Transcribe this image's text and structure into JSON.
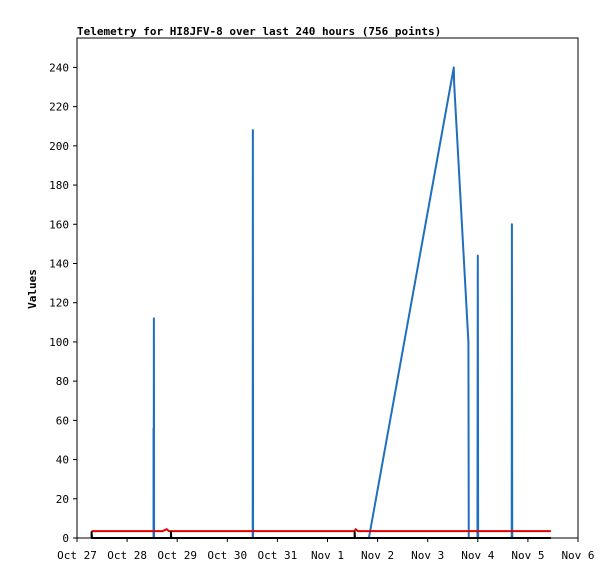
{
  "chart_data": {
    "type": "line",
    "title": "Telemetry for HI8JFV-8 over last 240 hours (756 points)",
    "xlabel": "",
    "ylabel": "Values",
    "x_tick_labels": [
      "Oct 27",
      "Oct 28",
      "Oct 29",
      "Oct 30",
      "Oct 31",
      "Nov 1",
      "Nov 2",
      "Nov 3",
      "Nov 4",
      "Nov 5",
      "Nov 6"
    ],
    "xlim": [
      "2024-10-27",
      "2024-11-06"
    ],
    "y_ticks": [
      0,
      20,
      40,
      60,
      80,
      100,
      120,
      140,
      160,
      180,
      200,
      220,
      240
    ],
    "ylim": [
      0,
      255
    ],
    "grid": false,
    "legend": "none",
    "series": [
      {
        "color": "#1f6fbf",
        "points": [
          [
            "2024-10-28T12:40",
            0
          ],
          [
            "2024-10-28T12:40",
            56
          ],
          [
            "2024-10-28T12:45",
            0
          ],
          [
            "2024-10-28T12:50",
            112
          ],
          [
            "2024-10-28T12:55",
            0
          ],
          [
            "2024-10-30T12:10",
            0
          ],
          [
            "2024-10-30T12:15",
            208
          ],
          [
            "2024-10-30T12:20",
            0
          ],
          [
            "2024-11-01T19:50",
            0
          ],
          [
            "2024-11-03T12:30",
            240
          ],
          [
            "2024-11-03T12:40",
            232
          ],
          [
            "2024-11-03T19:30",
            100
          ],
          [
            "2024-11-03T19:40",
            0
          ],
          [
            "2024-11-03T19:50",
            0
          ],
          [
            "2024-11-03T23:50",
            0
          ],
          [
            "2024-11-04T00:00",
            144
          ],
          [
            "2024-11-04T00:10",
            0
          ],
          [
            "2024-11-04T16:15",
            0
          ],
          [
            "2024-11-04T16:20",
            160
          ],
          [
            "2024-11-04T16:30",
            0
          ]
        ]
      },
      {
        "color": "#e00000",
        "points": [
          [
            "2024-10-27T07:00",
            3.5
          ],
          [
            "2024-10-28T17:00",
            3.5
          ],
          [
            "2024-10-28T19:00",
            4.5
          ],
          [
            "2024-10-28T20:00",
            3.5
          ],
          [
            "2024-11-01T13:00",
            3.5
          ],
          [
            "2024-11-01T13:30",
            4.5
          ],
          [
            "2024-11-01T14:30",
            3.5
          ],
          [
            "2024-11-05T11:00",
            3.5
          ]
        ]
      },
      {
        "color": "#000000",
        "points": [
          [
            "2024-10-27T07:00",
            0
          ],
          [
            "2024-10-27T07:00",
            3
          ],
          [
            "2024-10-27T07:10",
            0
          ],
          [
            "2024-10-28T21:00",
            0
          ],
          [
            "2024-10-28T21:00",
            3
          ],
          [
            "2024-10-28T21:10",
            0
          ],
          [
            "2024-11-01T13:00",
            0
          ],
          [
            "2024-11-01T13:00",
            3
          ],
          [
            "2024-11-01T13:10",
            0
          ],
          [
            "2024-11-05T11:00",
            0
          ]
        ]
      }
    ]
  }
}
